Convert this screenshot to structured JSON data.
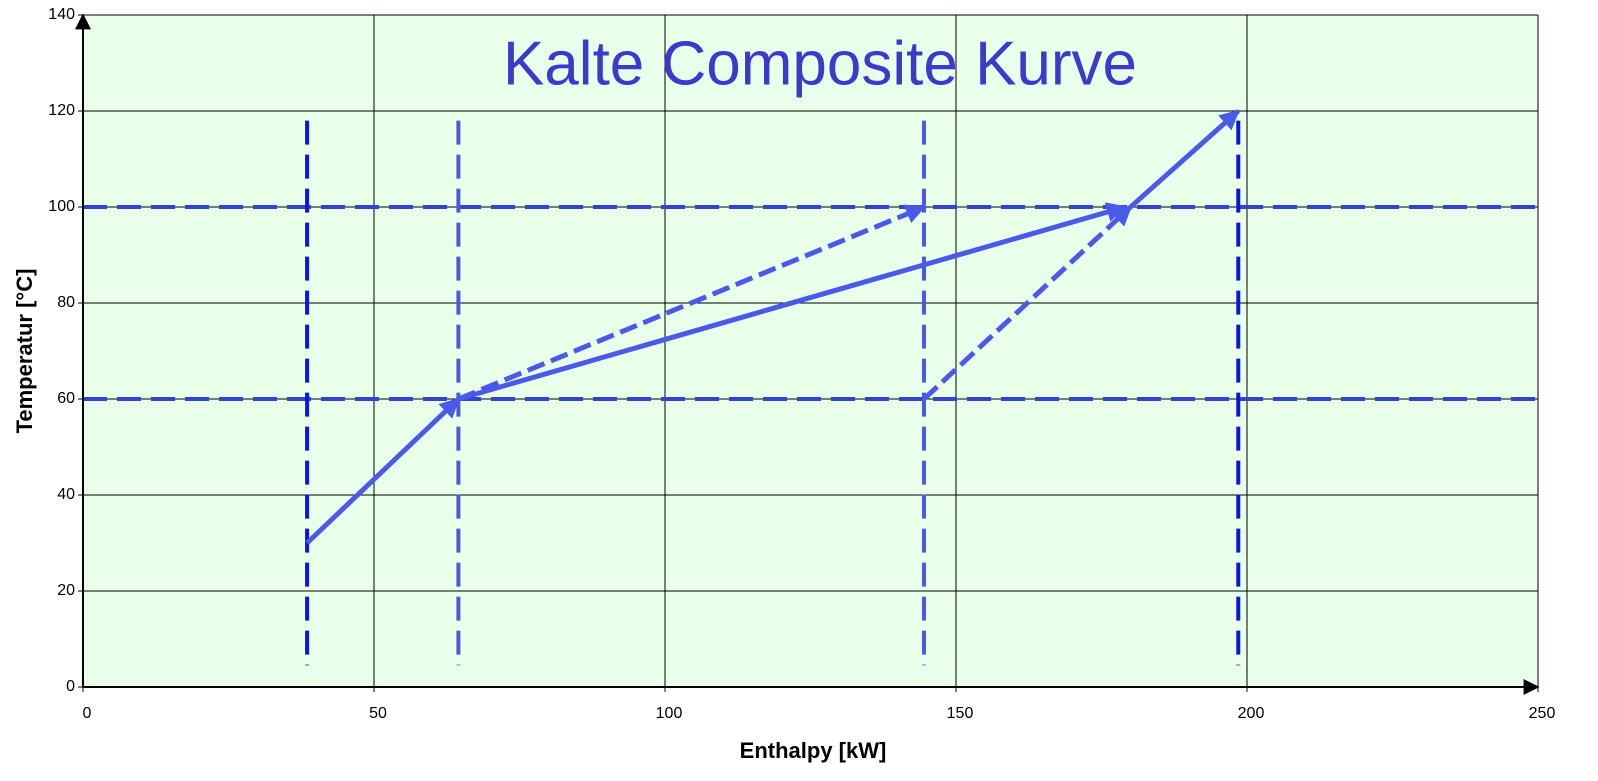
{
  "chart_data": {
    "type": "line",
    "title": "Kalte Composite Kurve",
    "x_label": "Enthalpy [kW]",
    "y_label": "Temperatur [°C]",
    "xlim": [
      0,
      250
    ],
    "xticks": [
      0,
      50,
      100,
      150,
      200,
      250
    ],
    "ylim": [
      0,
      140
    ],
    "yticks": [
      0,
      20,
      40,
      60,
      80,
      100,
      120,
      140
    ],
    "grid": true,
    "series": [
      {
        "color": "#4a5ae8",
        "dash": false,
        "x": [
          38.5,
          64.5
        ],
        "values": [
          30,
          60
        ]
      },
      {
        "color": "#4a5ae8",
        "dash": false,
        "x": [
          64.5,
          179
        ],
        "values": [
          60,
          100
        ]
      },
      {
        "color": "#4a5ae8",
        "dash": true,
        "x": [
          64.5,
          144.5
        ],
        "values": [
          60,
          100
        ]
      },
      {
        "color": "#4a5ae8",
        "dash": true,
        "x": [
          144.5,
          180
        ],
        "values": [
          60,
          100
        ]
      },
      {
        "color": "#4a5ae8",
        "dash": false,
        "x": [
          180,
          198.5
        ],
        "values": [
          100,
          120
        ]
      }
    ],
    "vlines": [
      {
        "x": 38.5,
        "color": "#0a14e6"
      },
      {
        "x": 64.5,
        "color": "#4a5ae0"
      },
      {
        "x": 144.5,
        "color": "#4a5ae0"
      },
      {
        "x": 198.5,
        "color": "#0a14e6"
      }
    ],
    "vline_range": [
      4.5,
      118
    ],
    "hlines": [
      {
        "y": 60,
        "color": "#3344cc"
      },
      {
        "y": 100,
        "color": "#3344cc"
      }
    ]
  }
}
